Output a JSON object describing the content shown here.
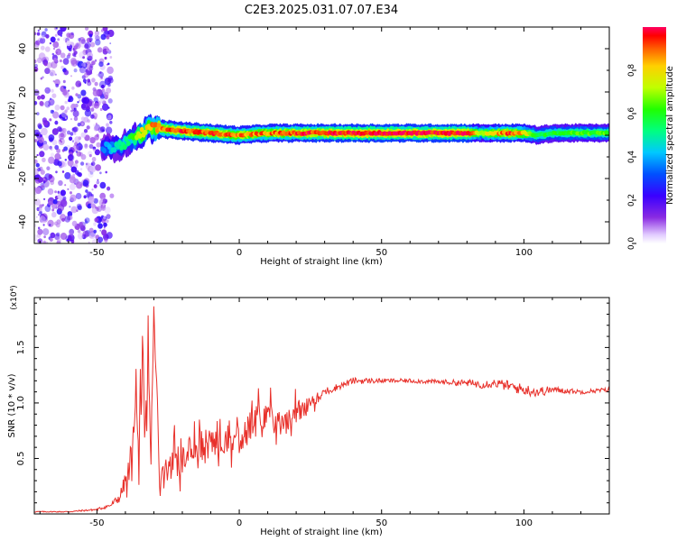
{
  "title": "C2E3.2025.031.07.07.E34",
  "chart_data": [
    {
      "type": "heatmap",
      "xlabel": "Height of straight line (km)",
      "ylabel": "Frequency (Hz)",
      "xlim": [
        -72,
        130
      ],
      "ylim": [
        -50,
        50
      ],
      "x_ticks": [
        "-50",
        "0",
        "50",
        "100"
      ],
      "y_ticks": [
        "-40",
        "-20",
        "0",
        "20",
        "40"
      ],
      "colorbar": {
        "label": "Normalized spectral amplitude",
        "range": [
          0,
          1
        ],
        "ticks": [
          "0.0",
          "0.2",
          "0.4",
          "0.6",
          "0.8"
        ]
      },
      "ridge": {
        "noise_x_range": [
          -72,
          -45
        ],
        "x": [
          -48,
          -45,
          -42,
          -40,
          -38,
          -35,
          -32,
          -28,
          -20,
          -10,
          0,
          10,
          20,
          40,
          60,
          80,
          85,
          90,
          95,
          100,
          105,
          110,
          120,
          130
        ],
        "freq": [
          -6,
          -6,
          -5,
          -4,
          -2,
          0,
          3,
          3,
          2,
          1,
          0,
          1,
          1,
          1,
          1,
          1,
          1,
          1,
          1,
          1,
          0,
          1,
          1,
          1
        ],
        "amplitude": [
          0.35,
          0.45,
          0.5,
          0.55,
          0.6,
          0.75,
          0.85,
          0.9,
          0.95,
          0.95,
          0.9,
          0.9,
          0.95,
          1.0,
          1.0,
          1.0,
          0.7,
          0.85,
          0.95,
          0.85,
          0.6,
          0.6,
          0.65,
          0.65
        ]
      }
    },
    {
      "type": "line",
      "xlabel": "Height of straight line (km)",
      "ylabel": "SNR (10 * v/v)",
      "y_multiplier": "(x10⁴)",
      "xlim": [
        -72,
        130
      ],
      "ylim": [
        0,
        1.95
      ],
      "x_ticks": [
        "-50",
        "0",
        "50",
        "100"
      ],
      "y_ticks": [
        "0.5",
        "1.0",
        "1.5"
      ],
      "series": [
        {
          "color": "#e8302a",
          "x": [
            -72,
            -60,
            -50,
            -45,
            -42,
            -40,
            -38,
            -37,
            -36,
            -35,
            -34,
            -33,
            -32,
            -31,
            -30,
            -28,
            -25,
            -20,
            -15,
            -10,
            -5,
            0,
            5,
            10,
            15,
            20,
            25,
            30,
            35,
            40,
            50,
            60,
            70,
            80,
            85,
            90,
            95,
            100,
            105,
            110,
            120,
            130
          ],
          "y": [
            0.02,
            0.02,
            0.04,
            0.08,
            0.15,
            0.3,
            0.5,
            0.75,
            1.1,
            0.7,
            1.25,
            0.6,
            1.3,
            0.5,
            1.9,
            0.3,
            0.45,
            0.5,
            0.6,
            0.65,
            0.7,
            0.7,
            0.8,
            0.95,
            0.8,
            0.9,
            1.0,
            1.1,
            1.15,
            1.2,
            1.2,
            1.2,
            1.19,
            1.18,
            1.17,
            1.18,
            1.15,
            1.12,
            1.1,
            1.12,
            1.1,
            1.12
          ],
          "noise_amplitude": [
            0.005,
            0.005,
            0.01,
            0.02,
            0.05,
            0.08,
            0.15,
            0.2,
            0.25,
            0.25,
            0.25,
            0.25,
            0.25,
            0.25,
            0.1,
            0.15,
            0.15,
            0.15,
            0.15,
            0.15,
            0.15,
            0.15,
            0.15,
            0.15,
            0.12,
            0.12,
            0.06,
            0.04,
            0.03,
            0.03,
            0.02,
            0.02,
            0.02,
            0.03,
            0.04,
            0.04,
            0.05,
            0.05,
            0.05,
            0.03,
            0.02,
            0.02
          ]
        }
      ]
    }
  ]
}
